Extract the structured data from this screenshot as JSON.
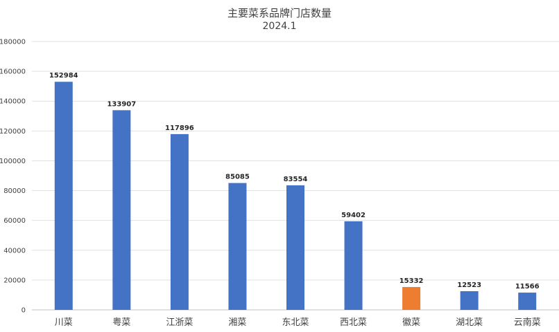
{
  "chart_data": {
    "type": "bar",
    "title": "主要菜系品牌门店数量",
    "subtitle": "2024.1",
    "categories": [
      "川菜",
      "粤菜",
      "江浙菜",
      "湘菜",
      "东北菜",
      "西北菜",
      "徽菜",
      "湖北菜",
      "云南菜"
    ],
    "values": [
      152984,
      133907,
      117896,
      85085,
      83554,
      59402,
      15332,
      12523,
      11566
    ],
    "colors": [
      "#4472C4",
      "#4472C4",
      "#4472C4",
      "#4472C4",
      "#4472C4",
      "#4472C4",
      "#ED7D31",
      "#4472C4",
      "#4472C4"
    ],
    "ylim": [
      0,
      180000
    ],
    "yticks": [
      0,
      20000,
      40000,
      60000,
      80000,
      100000,
      120000,
      140000,
      160000,
      180000
    ],
    "grid": true,
    "legend": "none",
    "xlabel": "",
    "ylabel": ""
  }
}
